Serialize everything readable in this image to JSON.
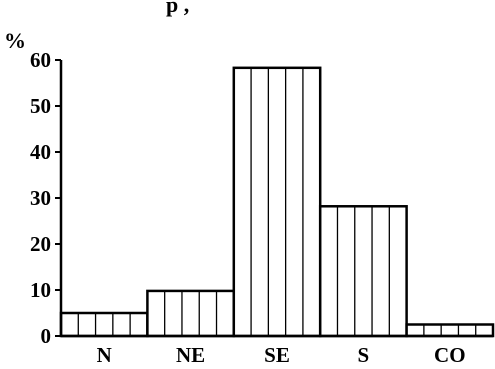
{
  "chart_data": {
    "type": "bar",
    "title_fragment": "p    ,",
    "ylabel": "%",
    "xlabel": "",
    "categories": [
      "N",
      "NE",
      "SE",
      "S",
      "CO"
    ],
    "values": [
      5,
      9.8,
      58.3,
      28.2,
      2.5
    ],
    "ylim": [
      0,
      60
    ],
    "yticks": [
      0,
      10,
      20,
      30,
      40,
      50,
      60
    ],
    "grid": false,
    "legend": "none",
    "bar_fill": "#ffffff",
    "bar_stroke": "#000000",
    "pattern": "vertical-lines"
  }
}
